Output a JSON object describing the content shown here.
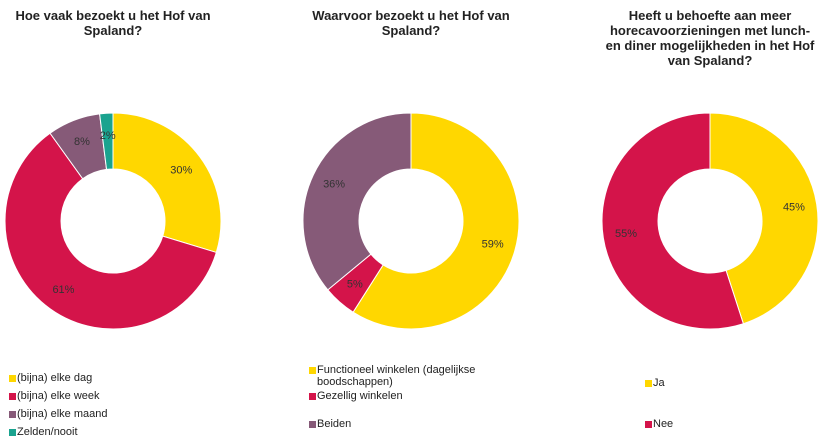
{
  "chart_data": [
    {
      "type": "donut",
      "title": "Hoe vaak bezoekt u het Hof van Spaland?",
      "categories": [
        "(bijna) elke dag",
        "(bijna) elke week",
        "(bijna) elke maand",
        "Zelden/nooit"
      ],
      "values": [
        30,
        61,
        8,
        2
      ],
      "value_labels": [
        "30%",
        "61%",
        "8%",
        "2%"
      ],
      "colors": [
        "#ffd700",
        "#d4144a",
        "#865a78",
        "#1aa38f"
      ]
    },
    {
      "type": "donut",
      "title": "Waarvoor bezoekt u het Hof van Spaland?",
      "categories": [
        "Functioneel winkelen (dagelijkse boodschappen)",
        "Gezellig winkelen",
        "Beiden"
      ],
      "values": [
        59,
        5,
        36
      ],
      "value_labels": [
        "59%",
        "5%",
        "36%"
      ],
      "colors": [
        "#ffd700",
        "#d4144a",
        "#865a78"
      ]
    },
    {
      "type": "donut",
      "title": "Heeft u behoefte aan meer horecavoorzieningen met lunch- en diner mogelijkheden in het Hof van Spaland?",
      "categories": [
        "Ja",
        "Nee"
      ],
      "values": [
        45,
        55
      ],
      "value_labels": [
        "45%",
        "55%"
      ],
      "colors": [
        "#ffd700",
        "#d4144a"
      ]
    }
  ]
}
